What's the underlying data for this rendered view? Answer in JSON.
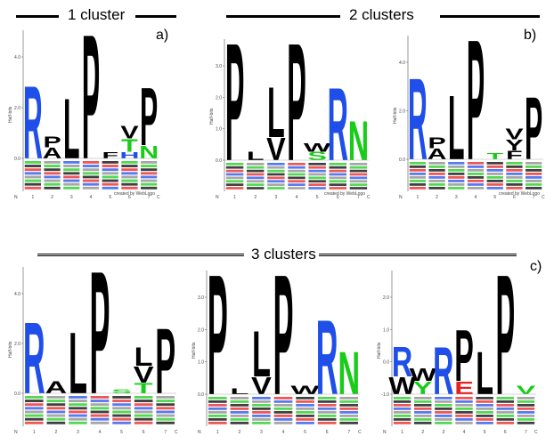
{
  "sections": {
    "one_cluster": {
      "title": "1 cluster",
      "letter": "a)"
    },
    "two_clusters": {
      "title": "2 clusters",
      "letter": "b)"
    },
    "three_clusters": {
      "title": "3 clusters",
      "letter": "c)"
    }
  },
  "axis": {
    "ylabel": "Half-bits",
    "n_terminal": "N",
    "c_terminal": "C",
    "credit": "created by WebLogo"
  },
  "colors": {
    "basic": "#1f4fe8",
    "hydrophobic": "#000000",
    "polar": "#19cc19",
    "acidic": "#e81f1f",
    "other": "#8a8a8a"
  },
  "logos": [
    {
      "id": "a",
      "yticks": [
        "4.0",
        "2.0",
        "0.0"
      ],
      "positions": [
        "1",
        "2",
        "3",
        "4",
        "5",
        "6",
        "7"
      ],
      "stacks": [
        [
          {
            "letter": "R",
            "color": "basic",
            "height": 3.4
          }
        ],
        [
          {
            "letter": "A",
            "color": "hydrophobic",
            "height": 0.5
          },
          {
            "letter": "P",
            "color": "hydrophobic",
            "height": 0.5
          }
        ],
        [
          {
            "letter": "L",
            "color": "hydrophobic",
            "height": 2.8
          }
        ],
        [
          {
            "letter": "P",
            "color": "hydrophobic",
            "height": 5.8
          }
        ],
        [
          {
            "letter": "F",
            "color": "hydrophobic",
            "height": 0.3
          }
        ],
        [
          {
            "letter": "H",
            "color": "basic",
            "height": 0.3
          },
          {
            "letter": "T",
            "color": "polar",
            "height": 0.6
          },
          {
            "letter": "V",
            "color": "hydrophobic",
            "height": 0.6
          }
        ],
        [
          {
            "letter": "N",
            "color": "polar",
            "height": 0.6
          },
          {
            "letter": "P",
            "color": "hydrophobic",
            "height": 2.7
          }
        ]
      ]
    },
    {
      "id": "b1",
      "yticks": [
        "3.0",
        "2.0",
        "1.0",
        "0.0"
      ],
      "positions": [
        "1",
        "2",
        "3",
        "4",
        "5",
        "6",
        "7"
      ],
      "stacks": [
        [
          {
            "letter": "P",
            "color": "hydrophobic",
            "height": 4.2
          }
        ],
        [
          {
            "letter": "L",
            "color": "hydrophobic",
            "height": 0.3
          }
        ],
        [
          {
            "letter": "V",
            "color": "hydrophobic",
            "height": 0.8
          },
          {
            "letter": "L",
            "color": "hydrophobic",
            "height": 1.8
          }
        ],
        [
          {
            "letter": "P",
            "color": "hydrophobic",
            "height": 4.2
          }
        ],
        [
          {
            "letter": "S",
            "color": "polar",
            "height": 0.3
          },
          {
            "letter": "W",
            "color": "hydrophobic",
            "height": 0.3
          }
        ],
        [
          {
            "letter": "R",
            "color": "basic",
            "height": 2.6
          }
        ],
        [
          {
            "letter": "N",
            "color": "polar",
            "height": 1.4
          }
        ]
      ]
    },
    {
      "id": "b2",
      "yticks": [
        "4.0",
        "2.0",
        "0.0"
      ],
      "positions": [
        "1",
        "2",
        "3",
        "4",
        "5",
        "6",
        "7"
      ],
      "stacks": [
        [
          {
            "letter": "R",
            "color": "basic",
            "height": 3.8
          }
        ],
        [
          {
            "letter": "A",
            "color": "hydrophobic",
            "height": 0.5
          },
          {
            "letter": "P",
            "color": "hydrophobic",
            "height": 0.5
          }
        ],
        [
          {
            "letter": "L",
            "color": "hydrophobic",
            "height": 3.0
          }
        ],
        [
          {
            "letter": "P",
            "color": "hydrophobic",
            "height": 5.6
          }
        ],
        [
          {
            "letter": "T",
            "color": "polar",
            "height": 0.3
          }
        ],
        [
          {
            "letter": "F",
            "color": "hydrophobic",
            "height": 0.4
          },
          {
            "letter": "Y",
            "color": "hydrophobic",
            "height": 0.5
          },
          {
            "letter": "V",
            "color": "hydrophobic",
            "height": 0.5
          }
        ],
        [
          {
            "letter": "P",
            "color": "hydrophobic",
            "height": 2.9
          }
        ]
      ]
    },
    {
      "id": "c1",
      "yticks": [
        "4.0",
        "2.0",
        "0.0"
      ],
      "positions": [
        "1",
        "2",
        "3",
        "4",
        "5",
        "6",
        "7"
      ],
      "stacks": [
        [
          {
            "letter": "R",
            "color": "basic",
            "height": 3.5
          }
        ],
        [
          {
            "letter": "A",
            "color": "hydrophobic",
            "height": 0.6
          }
        ],
        [
          {
            "letter": "L",
            "color": "hydrophobic",
            "height": 3.0
          }
        ],
        [
          {
            "letter": "P",
            "color": "hydrophobic",
            "height": 6.0
          }
        ],
        [
          {
            "letter": "S",
            "color": "polar",
            "height": 0.2
          }
        ],
        [
          {
            "letter": "T",
            "color": "polar",
            "height": 0.5
          },
          {
            "letter": "V",
            "color": "hydrophobic",
            "height": 0.8
          },
          {
            "letter": "L",
            "color": "hydrophobic",
            "height": 0.9
          }
        ],
        [
          {
            "letter": "P",
            "color": "hydrophobic",
            "height": 3.2
          }
        ]
      ]
    },
    {
      "id": "c2",
      "yticks": [
        "3.0",
        "2.0",
        "1.0",
        "0.0"
      ],
      "positions": [
        "1",
        "2",
        "3",
        "4",
        "5",
        "6",
        "7"
      ],
      "stacks": [
        [
          {
            "letter": "P",
            "color": "hydrophobic",
            "height": 4.2
          }
        ],
        [
          {
            "letter": "L",
            "color": "hydrophobic",
            "height": 0.2
          }
        ],
        [
          {
            "letter": "V",
            "color": "hydrophobic",
            "height": 0.6
          },
          {
            "letter": "L",
            "color": "hydrophobic",
            "height": 1.6
          }
        ],
        [
          {
            "letter": "P",
            "color": "hydrophobic",
            "height": 4.2
          }
        ],
        [
          {
            "letter": "W",
            "color": "hydrophobic",
            "height": 0.3
          }
        ],
        [
          {
            "letter": "R",
            "color": "basic",
            "height": 2.6
          }
        ],
        [
          {
            "letter": "N",
            "color": "polar",
            "height": 1.5
          }
        ]
      ]
    },
    {
      "id": "c3",
      "yticks": [
        "2.0",
        "1.0",
        "0.0",
        "-1.0"
      ],
      "positions": [
        "1",
        "2",
        "3",
        "4",
        "5",
        "6",
        "7"
      ],
      "stacks": [
        [
          {
            "letter": "W",
            "color": "hydrophobic",
            "height": 0.4
          },
          {
            "letter": "R",
            "color": "basic",
            "height": 0.7
          }
        ],
        [
          {
            "letter": "Y",
            "color": "polar",
            "height": 0.3
          },
          {
            "letter": "W",
            "color": "hydrophobic",
            "height": 0.3
          }
        ],
        [
          {
            "letter": "R",
            "color": "basic",
            "height": 1.1
          }
        ],
        [
          {
            "letter": "E",
            "color": "acidic",
            "height": 0.3
          },
          {
            "letter": "P",
            "color": "hydrophobic",
            "height": 1.2
          }
        ],
        [
          {
            "letter": "L",
            "color": "hydrophobic",
            "height": 1.0
          }
        ],
        [
          {
            "letter": "P",
            "color": "hydrophobic",
            "height": 2.8
          }
        ],
        [
          {
            "letter": "V",
            "color": "polar",
            "height": 0.2
          }
        ]
      ]
    }
  ]
}
